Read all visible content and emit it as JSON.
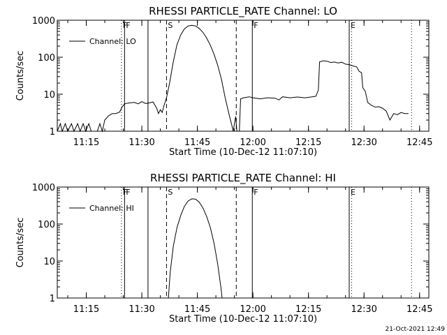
{
  "footer": {
    "date_stamp": "21-Oct-2021 12:49"
  },
  "chart_data": [
    {
      "type": "line",
      "title": "RHESSI PARTICLE_RATE Channel: LO",
      "xlabel": "Start Time (10-Dec-12 11:07:10)",
      "ylabel": "Counts/sec",
      "y_scale": "log",
      "ylim": [
        1,
        1000
      ],
      "y_ticks": [
        1,
        10,
        100,
        1000
      ],
      "y_tick_labels": [
        "1",
        "10",
        "100",
        "1000"
      ],
      "xlim": [
        "11:07:10",
        "12:47:30"
      ],
      "x_ticks": [
        "11:15",
        "11:30",
        "11:45",
        "12:00",
        "12:15",
        "12:30",
        "12:45"
      ],
      "grid": false,
      "legend": {
        "position": "top-left",
        "entries": [
          "Channel: LO"
        ]
      },
      "markers": [
        {
          "label": "F",
          "time": "11:24:30",
          "style": "dotted"
        },
        {
          "label": "F",
          "time": "11:25:20",
          "style": "solid"
        },
        {
          "label": "",
          "time": "11:31:40",
          "style": "solid"
        },
        {
          "label": "S",
          "time": "11:36:40",
          "style": "dashed"
        },
        {
          "label": "",
          "time": "11:55:30",
          "style": "dashed"
        },
        {
          "label": "F",
          "time": "11:59:50",
          "style": "solid"
        },
        {
          "label": "E",
          "time": "12:26:00",
          "style": "solid"
        },
        {
          "label": "",
          "time": "12:26:40",
          "style": "dotted"
        },
        {
          "label": "",
          "time": "12:42:50",
          "style": "dotted"
        }
      ],
      "series": [
        {
          "name": "Channel: LO",
          "points": [
            [
              "11:07:10",
              1
            ],
            [
              "11:08:00",
              1.6
            ],
            [
              "11:08:30",
              1
            ],
            [
              "11:09:20",
              1.6
            ],
            [
              "11:10:00",
              1
            ],
            [
              "11:11:00",
              1.6
            ],
            [
              "11:11:40",
              1
            ],
            [
              "11:12:40",
              1.6
            ],
            [
              "11:13:20",
              1
            ],
            [
              "11:14:10",
              1.6
            ],
            [
              "11:14:50",
              1
            ],
            [
              "11:15:40",
              1.6
            ],
            [
              "11:16:20",
              1
            ],
            [
              "11:18:00",
              1
            ],
            [
              "11:18:40",
              1.6
            ],
            [
              "11:19:20",
              1
            ],
            [
              "11:20:00",
              2
            ],
            [
              "11:21:00",
              2.6
            ],
            [
              "11:22:00",
              3
            ],
            [
              "11:23:00",
              3
            ],
            [
              "11:24:00",
              3.3
            ],
            [
              "11:24:40",
              4.5
            ],
            [
              "11:25:20",
              5.5
            ],
            [
              "11:26:30",
              5.8
            ],
            [
              "11:28:00",
              6
            ],
            [
              "11:29:00",
              5.5
            ],
            [
              "11:30:00",
              6.3
            ],
            [
              "11:31:00",
              5.6
            ],
            [
              "11:32:00",
              5.8
            ],
            [
              "11:33:00",
              6.2
            ],
            [
              "11:34:00",
              4.2
            ],
            [
              "11:34:30",
              3
            ],
            [
              "11:35:00",
              3.8
            ],
            [
              "11:35:30",
              3.2
            ],
            [
              "11:36:00",
              5
            ],
            [
              "11:36:40",
              8
            ],
            [
              "11:37:30",
              20
            ],
            [
              "11:38:30",
              75
            ],
            [
              "11:39:30",
              220
            ],
            [
              "11:40:30",
              400
            ],
            [
              "11:41:30",
              580
            ],
            [
              "11:42:30",
              700
            ],
            [
              "11:43:30",
              730
            ],
            [
              "11:44:30",
              700
            ],
            [
              "11:45:30",
              600
            ],
            [
              "11:46:30",
              470
            ],
            [
              "11:47:30",
              330
            ],
            [
              "11:48:30",
              210
            ],
            [
              "11:49:30",
              120
            ],
            [
              "11:50:30",
              60
            ],
            [
              "11:51:30",
              25
            ],
            [
              "11:52:30",
              8
            ],
            [
              "11:53:30",
              3
            ],
            [
              "11:54:20",
              1.4
            ],
            [
              "11:54:40",
              1
            ],
            [
              "11:55:20",
              2.5
            ],
            [
              "11:55:40",
              1
            ],
            [
              "11:56:20",
              1
            ],
            [
              "11:56:40",
              7.5
            ],
            [
              "11:57:30",
              8
            ],
            [
              "11:59:00",
              8.5
            ],
            [
              "12:00:00",
              8
            ],
            [
              "12:02:00",
              7.5
            ],
            [
              "12:04:00",
              8
            ],
            [
              "12:06:00",
              7.8
            ],
            [
              "12:07:00",
              7
            ],
            [
              "12:08:00",
              8.5
            ],
            [
              "12:10:00",
              8
            ],
            [
              "12:12:00",
              8.4
            ],
            [
              "12:14:00",
              8
            ],
            [
              "12:16:00",
              8.5
            ],
            [
              "12:17:00",
              8.8
            ],
            [
              "12:17:40",
              13
            ],
            [
              "12:18:00",
              75
            ],
            [
              "12:19:00",
              80
            ],
            [
              "12:20:00",
              78
            ],
            [
              "12:21:00",
              72
            ],
            [
              "12:22:00",
              74
            ],
            [
              "12:23:00",
              70
            ],
            [
              "12:24:00",
              73
            ],
            [
              "12:25:00",
              65
            ],
            [
              "12:26:00",
              63
            ],
            [
              "12:27:00",
              58
            ],
            [
              "12:28:00",
              55
            ],
            [
              "12:28:40",
              42
            ],
            [
              "12:29:20",
              38
            ],
            [
              "12:29:40",
              15
            ],
            [
              "12:30:20",
              12
            ],
            [
              "12:31:00",
              6
            ],
            [
              "12:32:00",
              5
            ],
            [
              "12:33:00",
              4.5
            ],
            [
              "12:34:00",
              4.6
            ],
            [
              "12:35:00",
              4.2
            ],
            [
              "12:36:00",
              3.5
            ],
            [
              "12:37:00",
              2
            ],
            [
              "12:38:00",
              3
            ],
            [
              "12:39:00",
              2.8
            ],
            [
              "12:40:00",
              3.2
            ],
            [
              "12:41:00",
              3
            ],
            [
              "12:42:00",
              3
            ]
          ]
        }
      ]
    },
    {
      "type": "line",
      "title": "RHESSI PARTICLE_RATE Channel: HI",
      "xlabel": "Start Time (10-Dec-12 11:07:10)",
      "ylabel": "Counts/sec",
      "y_scale": "log",
      "ylim": [
        1,
        1000
      ],
      "y_ticks": [
        1,
        10,
        100,
        1000
      ],
      "y_tick_labels": [
        "1",
        "10",
        "100",
        "1000"
      ],
      "xlim": [
        "11:07:10",
        "12:47:30"
      ],
      "x_ticks": [
        "11:15",
        "11:30",
        "11:45",
        "12:00",
        "12:15",
        "12:30",
        "12:45"
      ],
      "grid": false,
      "legend": {
        "position": "top-left",
        "entries": [
          "Channel: HI"
        ]
      },
      "markers": [
        {
          "label": "F",
          "time": "11:24:30",
          "style": "dotted"
        },
        {
          "label": "F",
          "time": "11:25:20",
          "style": "solid"
        },
        {
          "label": "",
          "time": "11:31:40",
          "style": "solid"
        },
        {
          "label": "S",
          "time": "11:36:40",
          "style": "dashed"
        },
        {
          "label": "",
          "time": "11:55:30",
          "style": "dashed"
        },
        {
          "label": "F",
          "time": "11:59:50",
          "style": "solid"
        },
        {
          "label": "E",
          "time": "12:26:00",
          "style": "solid"
        },
        {
          "label": "",
          "time": "12:26:40",
          "style": "dotted"
        },
        {
          "label": "",
          "time": "12:42:50",
          "style": "dotted"
        }
      ],
      "series": [
        {
          "name": "Channel: HI",
          "points": [
            [
              "11:37:10",
              1
            ],
            [
              "11:37:40",
              5
            ],
            [
              "11:38:30",
              25
            ],
            [
              "11:39:30",
              80
            ],
            [
              "11:40:30",
              170
            ],
            [
              "11:41:30",
              300
            ],
            [
              "11:42:30",
              420
            ],
            [
              "11:43:30",
              480
            ],
            [
              "11:44:30",
              470
            ],
            [
              "11:45:30",
              390
            ],
            [
              "11:46:30",
              270
            ],
            [
              "11:47:30",
              160
            ],
            [
              "11:48:30",
              80
            ],
            [
              "11:49:30",
              30
            ],
            [
              "11:50:30",
              8
            ],
            [
              "11:51:20",
              2
            ],
            [
              "11:51:40",
              1
            ]
          ]
        }
      ]
    }
  ]
}
